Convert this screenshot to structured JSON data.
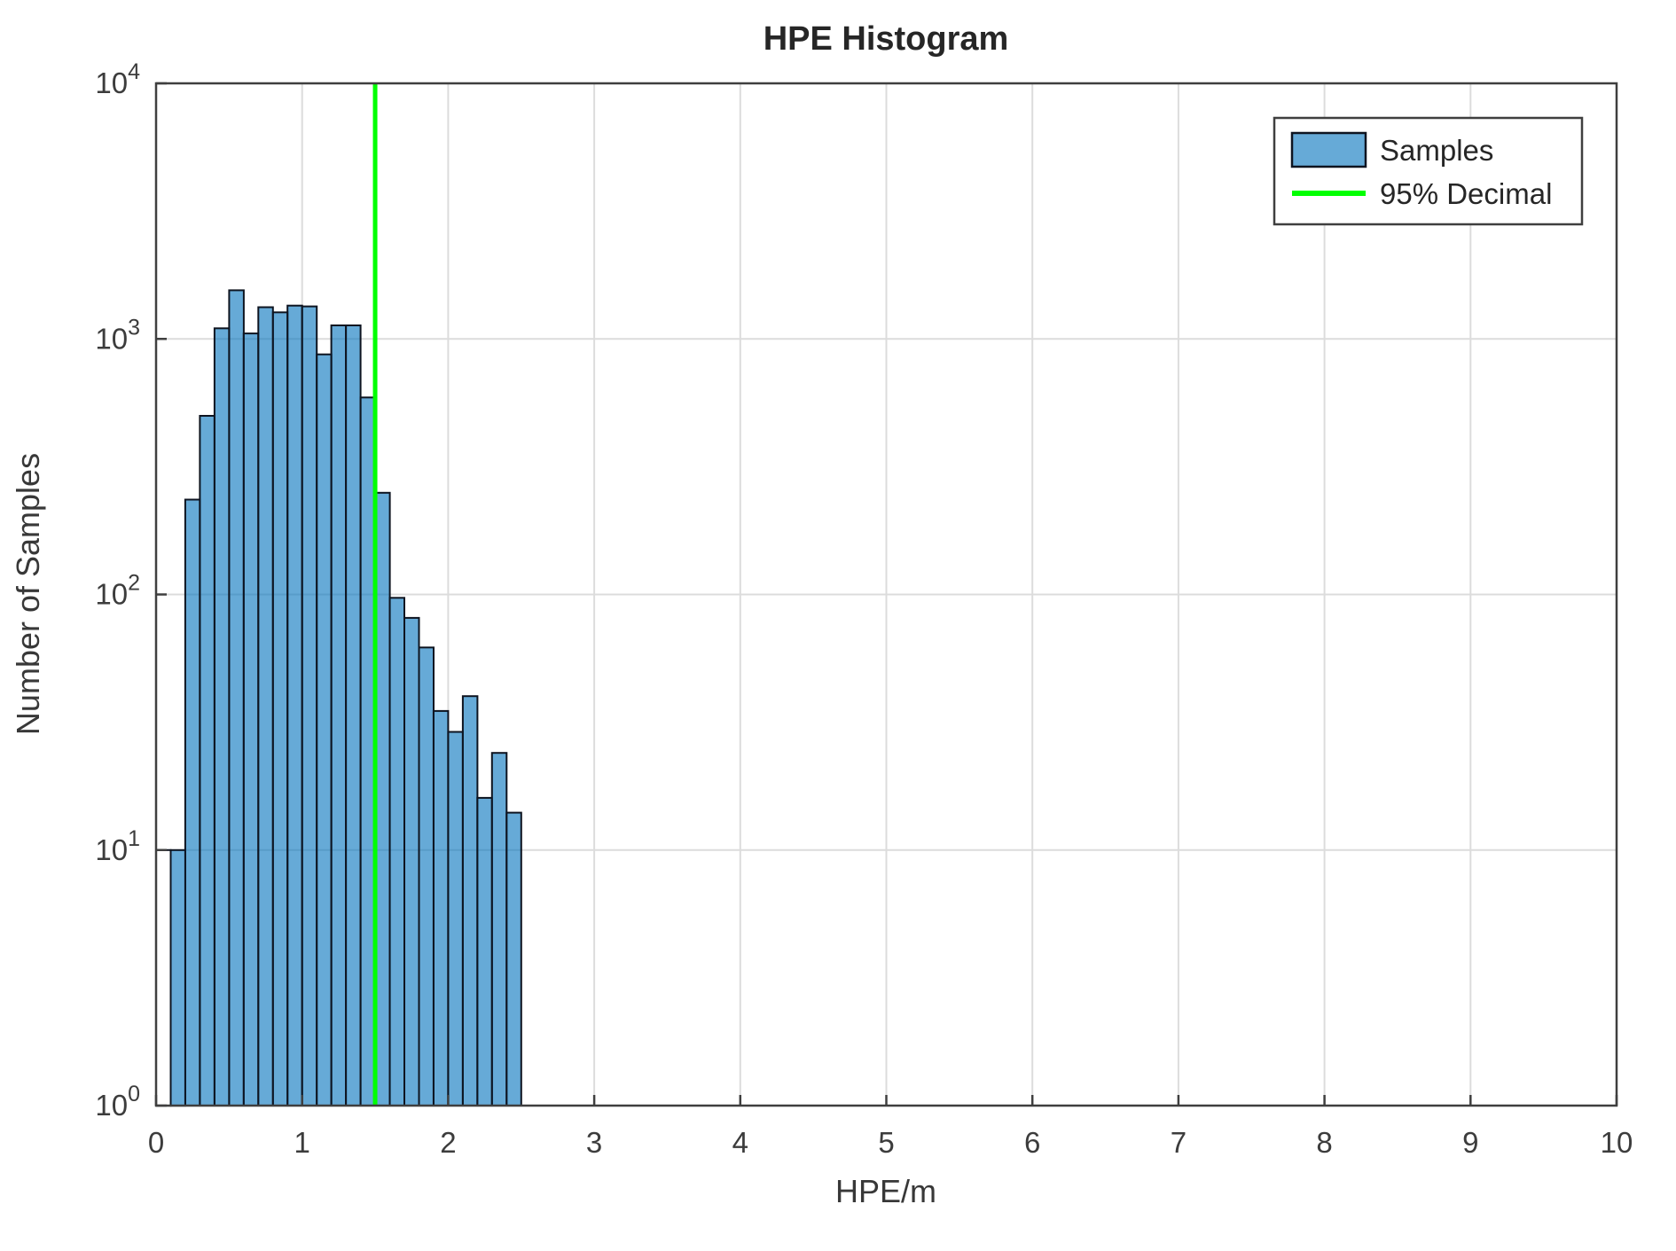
{
  "title": "HPE Histogram",
  "axes": {
    "xlabel": "HPE/m",
    "ylabel": "Number of Samples"
  },
  "legend": {
    "items": [
      {
        "label": "Samples",
        "marker": "bar-swatch"
      },
      {
        "label": "95% Decimal",
        "marker": "line-swatch"
      }
    ]
  },
  "chart_data": {
    "type": "bar",
    "subtype": "histogram",
    "title": "HPE Histogram",
    "xlabel": "HPE/m",
    "ylabel": "Number of Samples",
    "x_scale": "linear",
    "y_scale": "log",
    "xlim": [
      0,
      10
    ],
    "ylim": [
      1,
      10000
    ],
    "x_ticks": [
      0,
      1,
      2,
      3,
      4,
      5,
      6,
      7,
      8,
      9,
      10
    ],
    "y_tick_exponents": [
      0,
      1,
      2,
      3,
      4
    ],
    "grid": true,
    "legend_position": "upper right",
    "bin_width": 0.1,
    "bin_starts": [
      0.0,
      0.1,
      0.2,
      0.3,
      0.4,
      0.5,
      0.6,
      0.7,
      0.8,
      0.9,
      1.0,
      1.1,
      1.2,
      1.3,
      1.4,
      1.5,
      1.6,
      1.7,
      1.8,
      1.9,
      2.0,
      2.1,
      2.2,
      2.3,
      2.4
    ],
    "counts": [
      10,
      10,
      235,
      500,
      1100,
      1550,
      1050,
      1330,
      1270,
      1350,
      1340,
      870,
      1130,
      1130,
      590,
      250,
      97,
      81,
      62,
      35,
      29,
      40,
      16,
      24,
      14
    ],
    "first_bin_unfilled": true,
    "vline": {
      "x": 1.5,
      "label": "95% Decimal"
    },
    "colors": {
      "bar_face": "rgba(0,114,189,0.6)",
      "bar_face_hex": "#66aad7",
      "bar_edge": "#0e1420",
      "first_bin_face": "#ffffff",
      "vline": "#00ff00",
      "grid": "#dcdcdc",
      "axis": "#3f3f3f",
      "text": "#3c3c3c"
    }
  }
}
